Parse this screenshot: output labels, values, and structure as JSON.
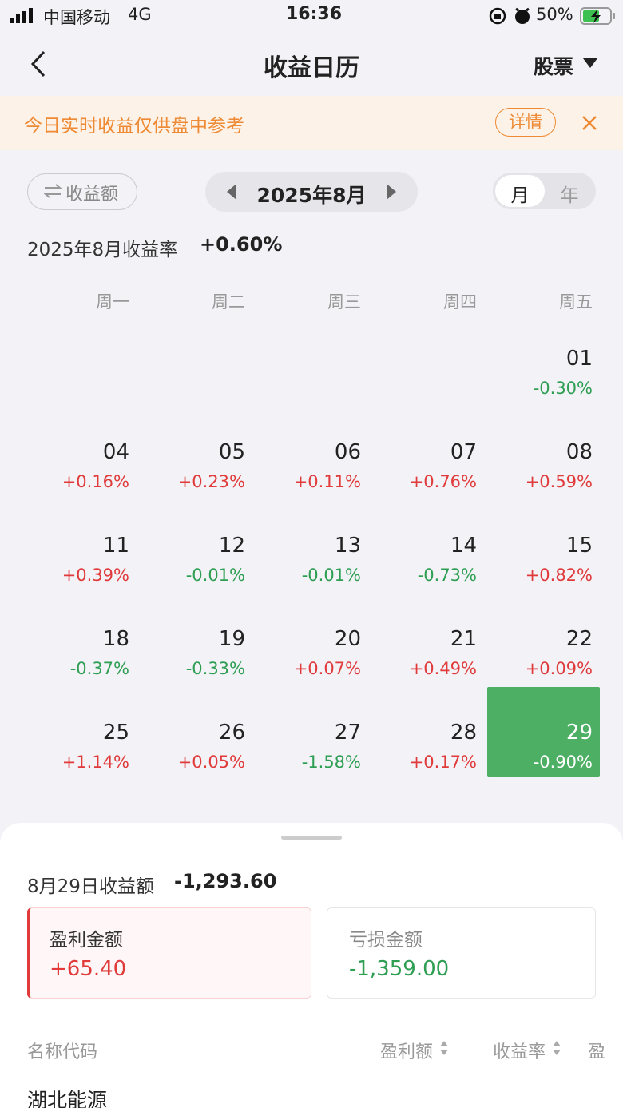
{
  "status_bar": {
    "carrier": "中国移动",
    "network": "4G",
    "time": "16:36",
    "battery": "50%"
  },
  "header": {
    "title": "收益日历",
    "filter": "股票"
  },
  "notice": {
    "text": "今日实时收益仅供盘中参考",
    "button": "详情"
  },
  "controls": {
    "toggle": "收益额",
    "month": "2025年8月",
    "period_options": [
      "月",
      "年"
    ]
  },
  "month_summary": {
    "label": "2025年8月收益率",
    "value": "+0.60%"
  },
  "calendar": {
    "weekdays": [
      "周一",
      "周二",
      "周三",
      "周四",
      "周五"
    ],
    "weeks": [
      [
        null,
        null,
        null,
        null,
        {
          "day": "01",
          "change": "-0.30%"
        }
      ],
      [
        {
          "day": "04",
          "change": "+0.16%"
        },
        {
          "day": "05",
          "change": "+0.23%"
        },
        {
          "day": "06",
          "change": "+0.11%"
        },
        {
          "day": "07",
          "change": "+0.76%"
        },
        {
          "day": "08",
          "change": "+0.59%"
        }
      ],
      [
        {
          "day": "11",
          "change": "+0.39%"
        },
        {
          "day": "12",
          "change": "-0.01%"
        },
        {
          "day": "13",
          "change": "-0.01%"
        },
        {
          "day": "14",
          "change": "-0.73%"
        },
        {
          "day": "15",
          "change": "+0.82%"
        }
      ],
      [
        {
          "day": "18",
          "change": "-0.37%"
        },
        {
          "day": "19",
          "change": "-0.33%"
        },
        {
          "day": "20",
          "change": "+0.07%"
        },
        {
          "day": "21",
          "change": "+0.49%"
        },
        {
          "day": "22",
          "change": "+0.09%"
        }
      ],
      [
        {
          "day": "25",
          "change": "+1.14%"
        },
        {
          "day": "26",
          "change": "+0.05%"
        },
        {
          "day": "27",
          "change": "-1.58%"
        },
        {
          "day": "28",
          "change": "+0.17%"
        },
        {
          "day": "29",
          "change": "-0.90%",
          "selected": true
        }
      ]
    ]
  },
  "detail": {
    "title": "8月29日收益额",
    "total": "-1,293.60",
    "profit_label": "盈利金额",
    "profit": "+65.40",
    "loss_label": "亏损金额",
    "loss": "-1,359.00"
  },
  "table": {
    "columns": [
      "名称代码",
      "盈利额",
      "收益率",
      "盈"
    ],
    "rows": [
      [
        "湖北能源"
      ]
    ]
  }
}
